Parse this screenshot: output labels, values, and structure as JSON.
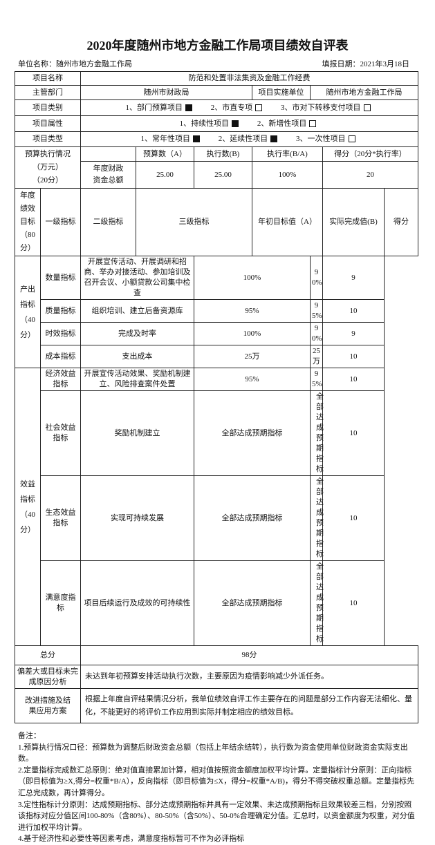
{
  "title": "2020年度随州市地方金融工作局项目绩效自评表",
  "unit_name": "单位名称：随州市地方金融工作局",
  "fill_date": "填报日期：2021年3月18日",
  "project": {
    "name_label": "项目名称",
    "name": "防范和处置非法集资及金融工作经费",
    "dept_label": "主管部门",
    "dept": "随州市财政局",
    "impl_label": "项目实施单位",
    "impl": "随州市地方金融工作局",
    "category_label": "项目类别",
    "category_options": [
      {
        "label": "1、部门预算项目",
        "checked": true
      },
      {
        "label": "2、市直专项",
        "checked": false
      },
      {
        "label": "3、市对下转移支付项目",
        "checked": false
      }
    ],
    "attr_label": "项目属性",
    "attr_options": [
      {
        "label": "1、持续性项目",
        "checked": true
      },
      {
        "label": "2、新增性项目",
        "checked": false
      }
    ],
    "type_label": "项目类型",
    "type_options": [
      {
        "label": "1、常年性项目",
        "checked": true
      },
      {
        "label": "2、延续性项目",
        "checked": true
      },
      {
        "label": "3、一次性项目",
        "checked": false
      }
    ]
  },
  "budget": {
    "label1": "预算执行情况",
    "label2": "（万元）",
    "label3": "（20分）",
    "headers": [
      "预算数（A）",
      "执行数(B)",
      "执行率(B/A)",
      "得分（20分*执行率）"
    ],
    "row_label1": "年度财政",
    "row_label2": "资金总额",
    "values": [
      "25.00",
      "25.00",
      "100%",
      "20"
    ]
  },
  "goals": {
    "side_label": [
      "年度",
      "绩效",
      "目标",
      "（80",
      "分）"
    ],
    "headers": [
      "一级指标",
      "二级指标",
      "三级指标",
      "年初目标值（A）",
      "实际完成值(B)",
      "得分"
    ],
    "groups": [
      {
        "label": "产出指标",
        "score": "（40分）",
        "rows": [
          {
            "l2": "数量指标",
            "l3": "开展宣传活动、开展调研和招商、举办对接活动、参加培训及召开会议、小额贷款公司集中检查",
            "target": "100%",
            "actual": "90%",
            "score": "9"
          },
          {
            "l2": "质量指标",
            "l3": "组织培训、建立后备资源库",
            "target": "95%",
            "actual": "95%",
            "score": "10"
          },
          {
            "l2": "时效指标",
            "l3": "完成及时率",
            "target": "100%",
            "actual": "90%",
            "score": "9"
          },
          {
            "l2": "成本指标",
            "l3": "支出成本",
            "target": "25万",
            "actual": "25万",
            "score": "10"
          }
        ]
      },
      {
        "label": "效益指标",
        "score": "（40分）",
        "rows": [
          {
            "l2": "经济效益指标",
            "l3": "开展宣传活动效果、奖励机制建立、风险排查案件处置",
            "target": "95%",
            "actual": "95%",
            "score": "10"
          },
          {
            "l2": "社会效益指标",
            "l3": "奖励机制建立",
            "target": "全部达成预期指标",
            "actual": "全部达成预期指标",
            "score": "10"
          },
          {
            "l2": "生态效益指标",
            "l3": "实现可持续发展",
            "target": "全部达成预期指标",
            "actual": "全部达成预期指标",
            "score": "10"
          },
          {
            "l2": "满意度指标",
            "l3": "项目后续运行及成效的可持续性",
            "target": "全部达成预期指标",
            "actual": "全部达成预期指标",
            "score": "10"
          }
        ]
      }
    ]
  },
  "total_label": "总分",
  "total": "98分",
  "deviation_label": "偏差大或目标未完成原因分析",
  "deviation": "未达到年初预算安排活动执行次数，主要原因为疫情影响减少外派任务。",
  "improve_label": "改进措施及结果应用方案",
  "improve": "根据上年度自评结果情况分析，我单位绩效自评工作主要存在的问题是部分工作内容无法细化、量化，不能更好的将评价工作应用到实际并制定相应的绩效目标。",
  "notes": {
    "title": "备注：",
    "items": [
      "1.预算执行情况口径：预算数为调整后财政资金总额（包括上年结余结转），执行数为资金使用单位财政资金实际支出数。",
      "2.定量指标完成数汇总原则：绝对值直接累加计算，相对值按照资金额度加权平均计算。定量指标计分原则：正向指标（即目标值为≥X,得分=权重*B/A），反向指标（即目标值为≤X，得分=权重*A/B)，得分不得突破权重总额。定量指标先汇总完成数，再计算得分。",
      "3.定性指标计分原则：达成预期指标、部分达成预期指标并具有一定效果、未达成预期指标且效果较差三档，分别按照该指标对应分值区间100-80%（含80%）、80-50%（含50%）、50-0%合理确定分值。汇总时，以资金额度为权重，对分值进行加权平均计算。",
      "4.基于经济性和必要性等因素考虑，满意度指标暂可不作为必评指标"
    ]
  }
}
